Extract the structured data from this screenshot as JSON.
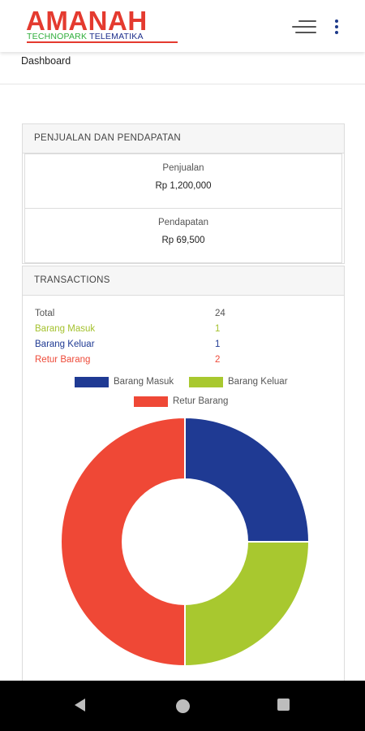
{
  "header": {
    "logo_main": "AMANAH",
    "logo_sub_left": "TECHNOPARK ",
    "logo_sub_right": "TELEMATIKA",
    "menu_icon": "hamburger-menu-icon",
    "more_icon": "more-vert-icon"
  },
  "breadcrumb": {
    "label": "Dashboard"
  },
  "sales_card": {
    "title": "PENJUALAN DAN PENDAPATAN",
    "penjualan": {
      "label": "Penjualan",
      "value": "Rp 1,200,000"
    },
    "pendapatan": {
      "label": "Pendapatan",
      "value": "Rp 69,500"
    }
  },
  "transactions_card": {
    "title": "TRANSACTIONS",
    "rows": [
      {
        "label": "Total",
        "value": "24",
        "color": "#555555"
      },
      {
        "label": "Barang Masuk",
        "value": "1",
        "color": "#a5c22f"
      },
      {
        "label": "Barang Keluar",
        "value": "1",
        "color": "#1f3a93"
      },
      {
        "label": "Retur Barang",
        "value": "2",
        "color": "#ee4b3a"
      }
    ]
  },
  "chart_data": {
    "type": "pie",
    "variant": "doughnut",
    "categories": [
      "Barang Masuk",
      "Barang Keluar",
      "Retur Barang"
    ],
    "values": [
      1,
      1,
      2
    ],
    "colors": [
      "#1f3a93",
      "#a8c82f",
      "#ef4836"
    ],
    "legend_position": "top",
    "title": ""
  },
  "navbar": {
    "back_icon": "back-triangle-icon",
    "home_icon": "home-circle-icon",
    "recent_icon": "recent-apps-square-icon"
  }
}
